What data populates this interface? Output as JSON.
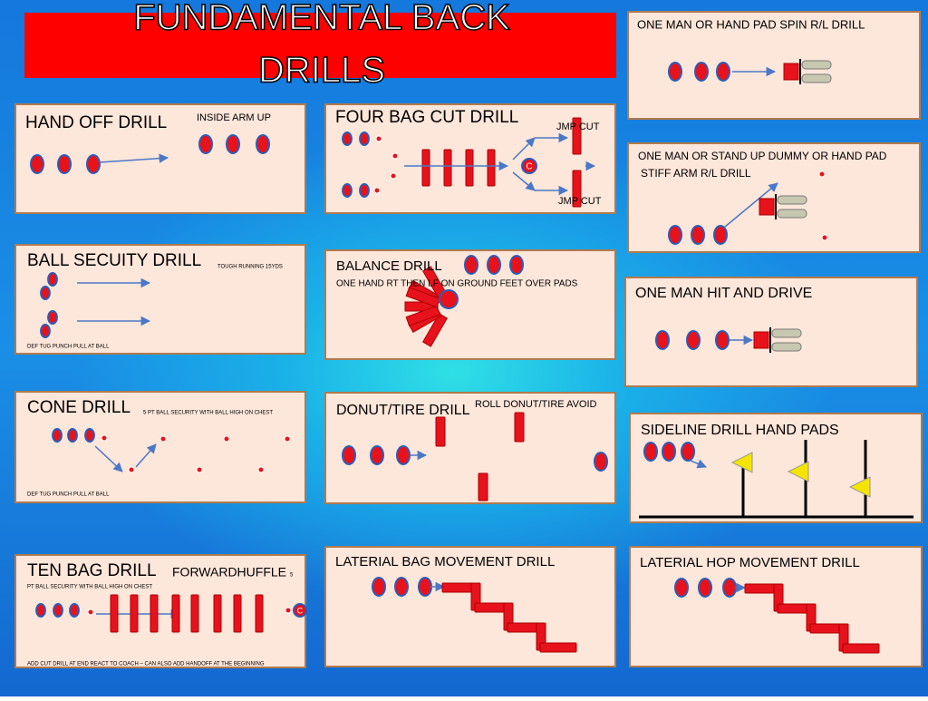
{
  "title": [
    "FUNDAMENTAL BACK",
    "DRILLS"
  ],
  "panels": [
    {
      "title": "ONE MAN OR HAND PAD   SPIN R/L DRILL"
    },
    {
      "title": "HAND OFF DRILL",
      "notes": [
        "INSIDE ARM UP"
      ]
    },
    {
      "title": "FOUR BAG CUT DRILL",
      "notes": [
        "JMP CUT",
        "JMP CUT"
      ],
      "coach": "C"
    },
    {
      "title": "ONE MAN OR STAND UP DUMMY OR HAND PAD",
      "notes": [
        "STIFF ARM R/L DRILL"
      ]
    },
    {
      "title": "BALL SECUITY DRILL",
      "notes": [
        "TOUGH RUNNING 15YDS",
        "DEF TUG PUNCH PULL AT BALL"
      ]
    },
    {
      "title": "BALANCE DRILL",
      "notes": [
        "ONE HAND RT THEN LF  ON GROUND FEET OVER PADS"
      ]
    },
    {
      "title": "ONE MAN HIT AND DRIVE"
    },
    {
      "title": "CONE DRILL",
      "notes": [
        "5 PT BALL SECURITY WITH BALL HIGH ON CHEST",
        "DEF TUG PUNCH PULL AT BALL"
      ]
    },
    {
      "title": "DONUT/TIRE DRILL",
      "notes": [
        "ROLL DONUT/TIRE AVOID"
      ]
    },
    {
      "title": "SIDELINE DRILL HAND PADS"
    },
    {
      "title": "TEN BAG DRILL",
      "notes": [
        "FORWARDHUFFLE",
        "5",
        "PT BALL SECURITY WITH BALL HIGH ON CHEST",
        "ADD CUT DRILL AT END REACT TO COACH – CAN ALSO ADD HANDOFF AT THE BEGINNING"
      ],
      "coach": "C"
    },
    {
      "title": "LATERIAL BAG MOVEMENT DRILL"
    },
    {
      "title": "LATERIAL HOP MOVEMENT DRILL"
    }
  ]
}
